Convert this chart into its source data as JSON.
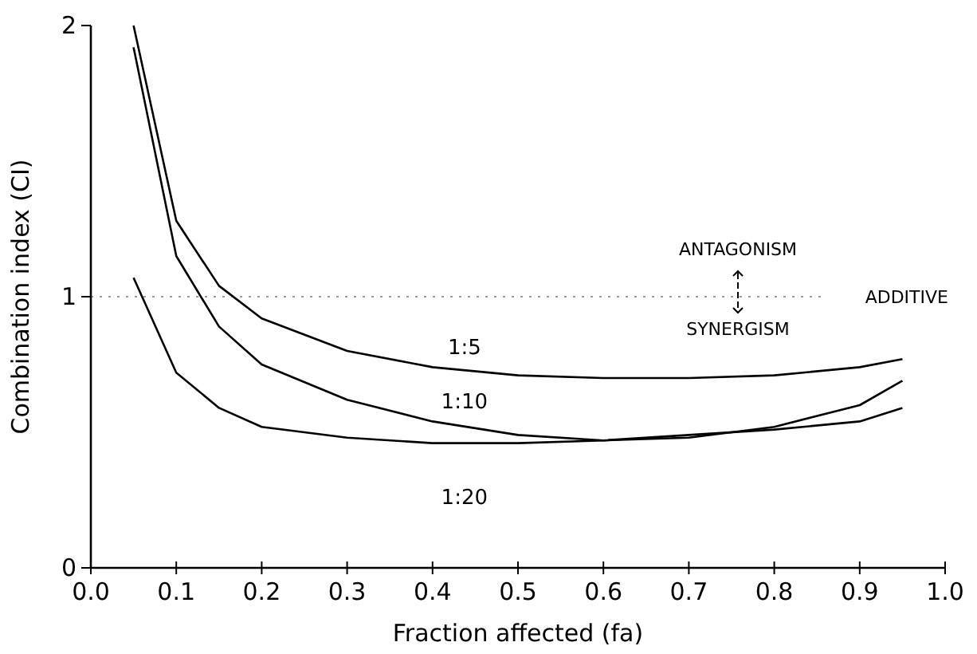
{
  "chart_data": {
    "type": "line",
    "xlabel": "Fraction affected (fa)",
    "ylabel": "Combination index (CI)",
    "x": [
      0.05,
      0.1,
      0.15,
      0.2,
      0.3,
      0.4,
      0.5,
      0.6,
      0.7,
      0.8,
      0.9,
      0.95
    ],
    "series": [
      {
        "name": "1:5",
        "color": "#000000",
        "values": [
          2.0,
          1.28,
          1.04,
          0.92,
          0.8,
          0.74,
          0.71,
          0.7,
          0.7,
          0.71,
          0.74,
          0.77
        ]
      },
      {
        "name": "1:10",
        "color": "#000000",
        "values": [
          1.92,
          1.15,
          0.89,
          0.75,
          0.62,
          0.54,
          0.49,
          0.47,
          0.48,
          0.52,
          0.6,
          0.69
        ]
      },
      {
        "name": "1:20",
        "color": "#000000",
        "values": [
          1.07,
          0.72,
          0.59,
          0.52,
          0.48,
          0.46,
          0.46,
          0.47,
          0.49,
          0.51,
          0.54,
          0.59
        ]
      }
    ],
    "xlim": [
      0,
      1
    ],
    "ylim": [
      0,
      2
    ],
    "xticks": [
      {
        "value": 0,
        "label": "0.0"
      },
      0.1,
      0.2,
      0.3,
      0.4,
      0.5,
      0.6,
      0.7,
      0.8,
      0.9,
      {
        "value": 1,
        "label": "1.0"
      }
    ],
    "yticks": [
      0,
      1,
      2
    ],
    "ref_lines": [
      {
        "axis": "y",
        "value": 1,
        "label": "ADDITIVE",
        "color": "#999999",
        "line_style": "dotted"
      }
    ],
    "annotations": [
      "ANTAGONISM",
      "SYNERGISM"
    ],
    "grid": false,
    "marker": "none",
    "line_style": "solid"
  }
}
